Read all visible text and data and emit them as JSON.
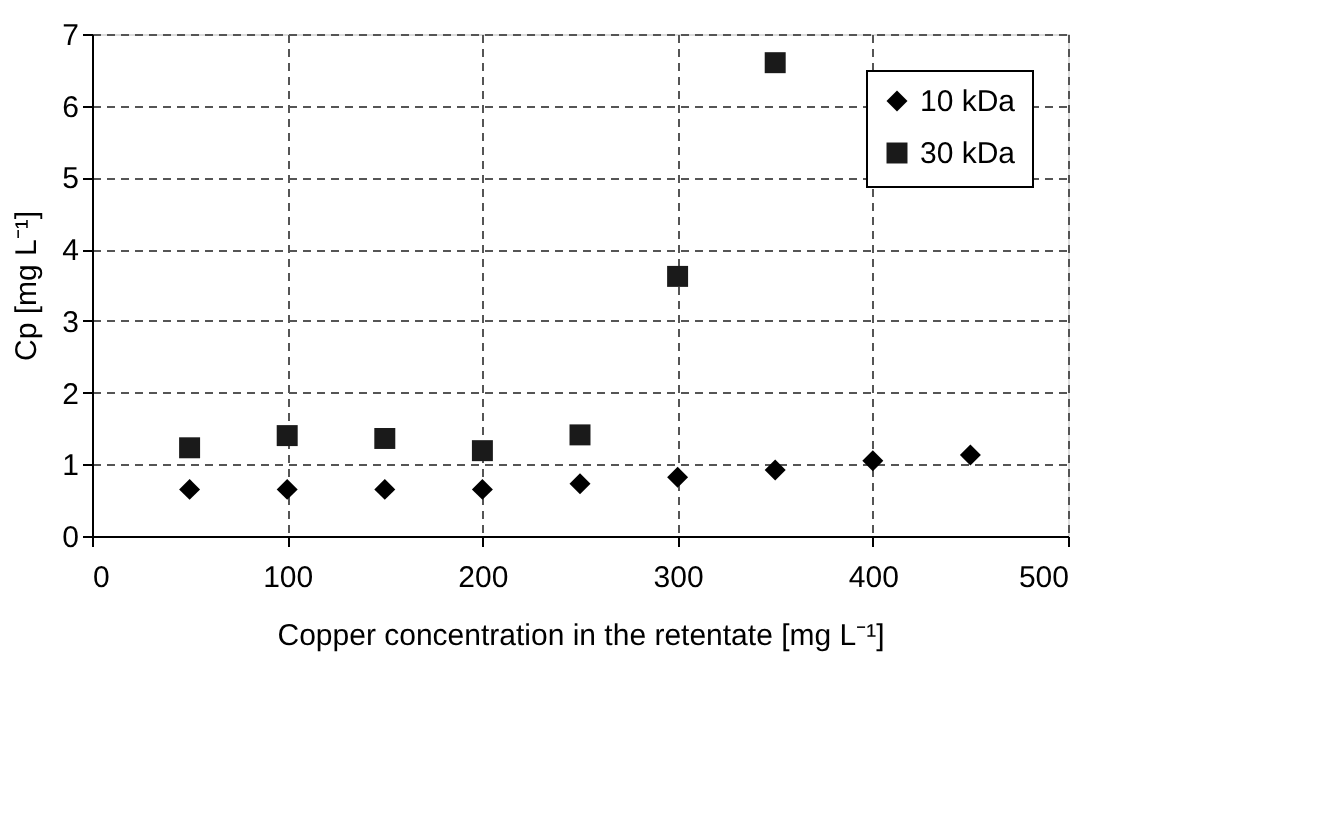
{
  "chart_data": {
    "type": "scatter",
    "xlabel": "Copper concentration in the retentate [mg L⁻¹]",
    "ylabel": "Cp [mg L⁻¹]",
    "xlim": [
      0,
      500
    ],
    "xticks": [
      0,
      100,
      200,
      300,
      400,
      500
    ],
    "ylim": [
      0,
      7
    ],
    "yticks": [
      0,
      1,
      2,
      3,
      4,
      5,
      6,
      7
    ],
    "grid": true,
    "legend": "top right",
    "series": [
      {
        "name": "10 kDa",
        "color": "#000000",
        "marker": "diamond",
        "x": [
          50,
          100,
          150,
          200,
          250,
          300,
          350,
          400,
          450
        ],
        "values": [
          0.65,
          0.65,
          0.65,
          0.65,
          0.73,
          0.82,
          0.92,
          1.05,
          1.13
        ]
      },
      {
        "name": "30 kDa",
        "color": "#1a1a1a",
        "marker": "square",
        "x": [
          50,
          100,
          150,
          200,
          250,
          300,
          350
        ],
        "values": [
          1.23,
          1.4,
          1.36,
          1.19,
          1.41,
          3.62,
          6.6
        ]
      }
    ]
  }
}
